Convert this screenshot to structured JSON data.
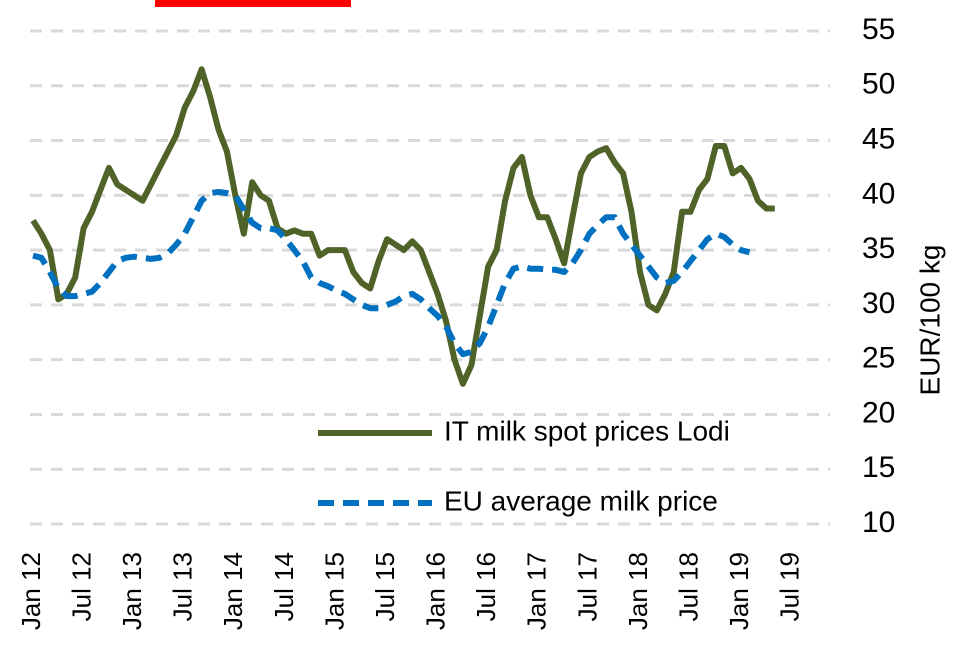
{
  "chart_data": {
    "type": "line",
    "y_axis_label": "EUR/100 kg",
    "categories": [
      "Jan 12",
      null,
      null,
      null,
      null,
      null,
      "Jul 12",
      null,
      null,
      null,
      null,
      null,
      "Jan 13",
      null,
      null,
      null,
      null,
      null,
      "Jul 13",
      null,
      null,
      null,
      null,
      null,
      "Jan 14",
      null,
      null,
      null,
      null,
      null,
      "Jul 14",
      null,
      null,
      null,
      null,
      null,
      "Jan 15",
      null,
      null,
      null,
      null,
      null,
      "Jul 15",
      null,
      null,
      null,
      null,
      null,
      "Jan 16",
      null,
      null,
      null,
      null,
      null,
      "Jul 16",
      null,
      null,
      null,
      null,
      null,
      "Jan 17",
      null,
      null,
      null,
      null,
      null,
      "Jul 17",
      null,
      null,
      null,
      null,
      null,
      "Jan 18",
      null,
      null,
      null,
      null,
      null,
      "Jul 18",
      null,
      null,
      null,
      null,
      null,
      "Jan 19",
      null,
      null,
      null,
      null,
      null,
      "Jul 19"
    ],
    "series": [
      {
        "name": "IT milk spot prices Lodi",
        "color": "#4f6228",
        "dashed": false,
        "values": [
          37.7,
          36.5,
          35,
          30.5,
          31,
          32.5,
          37,
          38.5,
          40.5,
          42.5,
          41,
          40.5,
          40,
          39.5,
          41,
          42.5,
          44,
          45.5,
          48,
          49.5,
          51.5,
          49,
          46,
          44,
          40,
          36.5,
          41.2,
          40,
          39.5,
          37,
          36.5,
          36.8,
          36.5,
          36.5,
          34.5,
          35,
          35,
          35,
          33,
          32,
          31.5,
          34,
          36,
          35.5,
          35,
          35.8,
          35,
          33,
          31,
          28.5,
          25,
          22.8,
          24.5,
          29,
          33.5,
          35,
          39.5,
          42.5,
          43.5,
          40,
          38,
          38,
          36,
          33.8,
          38,
          42,
          43.5,
          44,
          44.3,
          43,
          42,
          38.5,
          33,
          30,
          29.5,
          31,
          33,
          38.5,
          38.5,
          40.5,
          41.5,
          44.5,
          44.5,
          42,
          42.5,
          41.5,
          39.5,
          38.8,
          38.8,
          null,
          null
        ]
      },
      {
        "name": "EU average milk price",
        "color": "#0070c0",
        "dashed": true,
        "values": [
          34.5,
          34.3,
          33,
          31.5,
          30.8,
          30.8,
          31,
          31.2,
          32,
          33,
          34,
          34.3,
          34.4,
          34.3,
          34.2,
          34.3,
          34.7,
          35.5,
          36.5,
          38,
          39.5,
          40.2,
          40.3,
          40.2,
          40,
          38.7,
          37.5,
          37,
          37,
          36.8,
          36,
          35,
          34,
          32.5,
          32,
          31.7,
          31.3,
          31,
          30.5,
          30,
          29.7,
          29.7,
          30,
          30.3,
          30.8,
          31,
          30.5,
          29.7,
          29,
          28,
          26.5,
          25.5,
          25.7,
          26.5,
          28,
          30,
          32,
          33.3,
          33.5,
          33.3,
          33.3,
          33.2,
          33.2,
          33,
          33.8,
          35,
          36.5,
          37.3,
          38,
          38,
          36.5,
          35.5,
          34.5,
          33.5,
          32.5,
          32,
          32.2,
          33,
          34,
          35,
          36,
          36.5,
          36.2,
          35.5,
          35,
          34.8,
          null,
          null,
          null,
          null,
          null
        ]
      }
    ],
    "ylim": [
      10,
      55
    ],
    "yticks": [
      10,
      15,
      20,
      25,
      30,
      35,
      40,
      45,
      50,
      55
    ],
    "grid": true
  }
}
